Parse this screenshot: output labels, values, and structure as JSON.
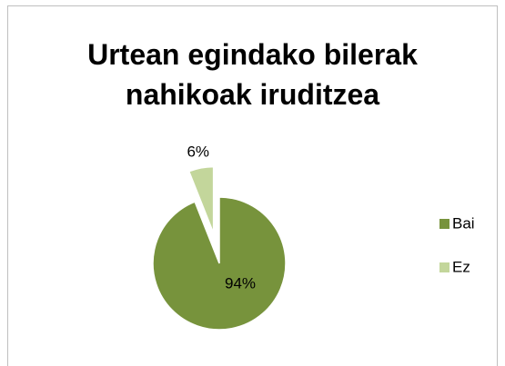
{
  "chart_data": {
    "type": "pie",
    "title": "Urtean egindako bilerak nahikoak iruditzea",
    "categories": [
      "Bai",
      "Ez"
    ],
    "values": [
      94,
      6
    ],
    "value_labels": [
      "94%",
      "6%"
    ],
    "colors": [
      "#77933c",
      "#c3d69b"
    ],
    "legend": "right"
  }
}
